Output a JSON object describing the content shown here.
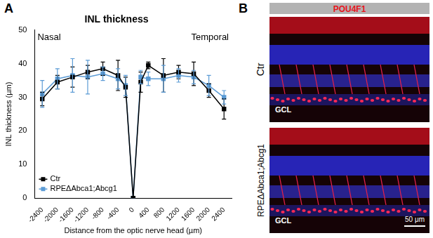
{
  "chart_data": {
    "type": "line",
    "title": "INL thickness",
    "x_label": "Distance from the optic nerve head (µm)",
    "y_label": "INL thickness (µm)",
    "annotations": [
      "Nasal",
      "Temporal"
    ],
    "x": [
      -2400,
      -2000,
      -1600,
      -1200,
      -800,
      -400,
      -200,
      0,
      200,
      400,
      800,
      1200,
      1600,
      2000,
      2400
    ],
    "series": [
      {
        "name": "Ctr",
        "color": "#000000",
        "marker": "square",
        "line_style": "solid",
        "values": [
          29.5,
          34.5,
          36,
          37.5,
          38.5,
          36.5,
          33,
          0,
          34.5,
          39.5,
          36.5,
          37.5,
          37,
          32,
          26.5
        ],
        "errors": [
          2,
          2,
          3,
          2,
          2,
          4.5,
          3,
          0,
          3,
          1,
          5,
          2,
          3.5,
          2,
          3
        ]
      },
      {
        "name": "RPEΔAbca1;Abcg1",
        "color": "#5b9bd5",
        "marker": "square",
        "line_style": "solid",
        "values": [
          31,
          35.5,
          36.5,
          36,
          37,
          35.5,
          33.5,
          0,
          36,
          35.5,
          35.5,
          36.5,
          36,
          33.5,
          30
        ],
        "errors": [
          4,
          3,
          5,
          5,
          2,
          3,
          3,
          0,
          2,
          2,
          4,
          2,
          2,
          3,
          2
        ]
      }
    ],
    "xlim": [
      -2600,
      2600
    ],
    "xticks": [
      -2400,
      -2000,
      -1600,
      -1200,
      -800,
      -400,
      0,
      400,
      800,
      1200,
      1600,
      2000,
      2400
    ],
    "ylim": [
      0,
      50
    ],
    "yticks": [
      0,
      10,
      20,
      30,
      40,
      50
    ],
    "grid": false,
    "legend": "lower left"
  },
  "panel_labels": [
    "A",
    "B"
  ],
  "panel_b": {
    "stain": "POU4F1",
    "rows": [
      "Ctr",
      "RPEΔAbca1;Abcg1"
    ],
    "layer_label": "GCL",
    "scale_bar": "50 μm"
  }
}
